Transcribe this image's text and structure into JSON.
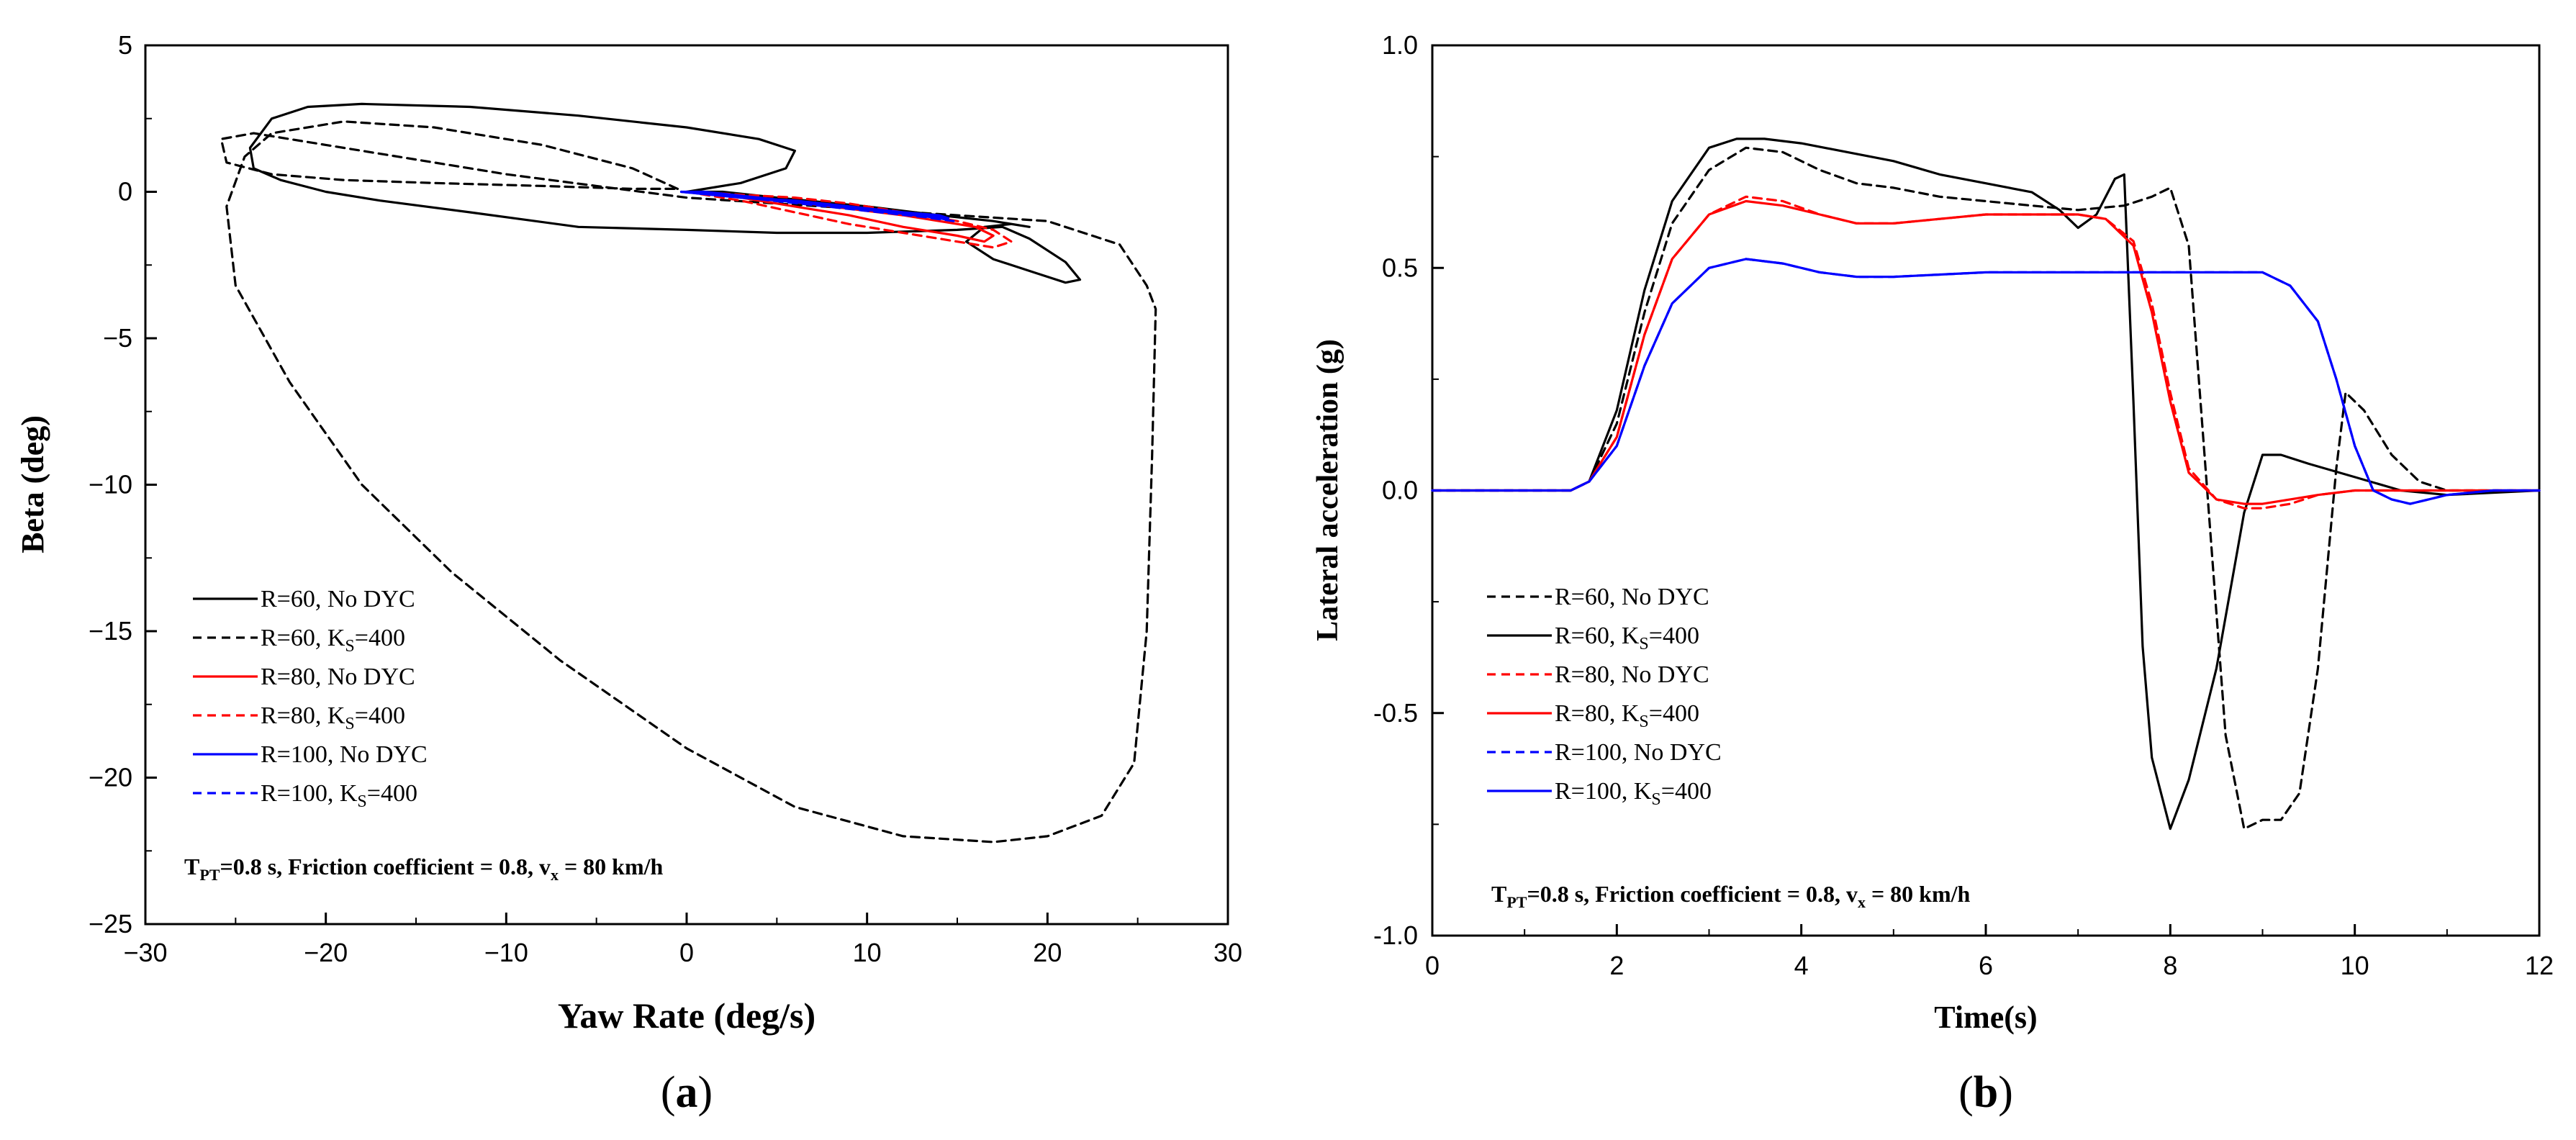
{
  "chart_data": [
    {
      "id": "a",
      "type": "line",
      "panel_label": {
        "open": "(",
        "letter": "a",
        "close": ")"
      },
      "xlabel": "Yaw Rate (deg/s)",
      "ylabel": "Beta (deg)",
      "xlim": [
        -30,
        30
      ],
      "ylim": [
        -25,
        5
      ],
      "xticks": [
        -30,
        -20,
        -10,
        0,
        10,
        20,
        30
      ],
      "yticks": [
        5,
        0,
        -5,
        -10,
        -15,
        -20,
        -25
      ],
      "xtick_labels": [
        "−30",
        "−20",
        "−10",
        "0",
        "10",
        "20",
        "30"
      ],
      "ytick_labels": [
        "5",
        "0",
        "−5",
        "−10",
        "−15",
        "−20",
        "−25"
      ],
      "legend": [
        {
          "series": 0,
          "text": "R=60, No DYC"
        },
        {
          "series": 1,
          "text": "R=60, K",
          "sub": "S",
          "suffix": "=400"
        },
        {
          "series": 2,
          "text": "R=80, No DYC"
        },
        {
          "series": 3,
          "text": "R=80, K",
          "sub": "S",
          "suffix": "=400"
        },
        {
          "series": 4,
          "text": "R=100, No DYC"
        },
        {
          "series": 5,
          "text": "R=100, K",
          "sub": "S",
          "suffix": "=400"
        }
      ],
      "annotation": {
        "t": "T",
        "t_sub": "PT",
        "mid": "=0.8 s,  Friction coefficient = 0.8,  v",
        "v_sub": "x",
        "end": " = 80 km/h"
      },
      "series": [
        {
          "name": "R=60, No DYC",
          "color": "#000000",
          "dash": "solid",
          "x": [
            0,
            3,
            5.5,
            6,
            4,
            0,
            -6,
            -12,
            -18,
            -21,
            -23,
            -24.2,
            -24,
            -22.5,
            -20,
            -17,
            -12,
            -6,
            0,
            5,
            10,
            15,
            17.5,
            19,
            21,
            21.8,
            21,
            19.5,
            17,
            15.5,
            16.5,
            18,
            19,
            17,
            14,
            10,
            5,
            2,
            0
          ],
          "y": [
            0,
            0.3,
            0.8,
            1.4,
            1.8,
            2.2,
            2.6,
            2.9,
            3.0,
            2.9,
            2.5,
            1.5,
            0.8,
            0.4,
            0.0,
            -0.3,
            -0.7,
            -1.2,
            -1.3,
            -1.4,
            -1.4,
            -1.3,
            -1.2,
            -1.6,
            -2.4,
            -3.0,
            -3.1,
            -2.8,
            -2.3,
            -1.7,
            -1.2,
            -1.1,
            -1.2,
            -1.0,
            -0.8,
            -0.5,
            -0.2,
            0.0,
            0
          ]
        },
        {
          "name": "R=60, Ks=400",
          "color": "#000000",
          "dash": "dashed",
          "x": [
            -0.5,
            -3,
            -8,
            -14,
            -19,
            -23,
            -24.5,
            -25.5,
            -25,
            -22,
            -18,
            -13,
            -7,
            0,
            6,
            12,
            17,
            20,
            23,
            24.8,
            25.5,
            25.8,
            26,
            25.5,
            24,
            20,
            15,
            10,
            5,
            0,
            -5,
            -10,
            -15,
            -20,
            -24,
            -25.8,
            -25.5,
            -23,
            -19,
            -14,
            -8,
            -3,
            -0.5
          ],
          "y": [
            0.1,
            0.8,
            1.6,
            2.2,
            2.4,
            2.0,
            1.2,
            -0.5,
            -3.2,
            -6.5,
            -10,
            -13,
            -16,
            -19,
            -21,
            -22,
            -22.2,
            -22,
            -21.3,
            -19.5,
            -15,
            -9,
            -4,
            -3.2,
            -1.8,
            -1.0,
            -0.8,
            -0.6,
            -0.4,
            -0.2,
            0.2,
            0.6,
            1.1,
            1.6,
            2.0,
            1.8,
            1.0,
            0.6,
            0.4,
            0.3,
            0.2,
            0.1,
            0.1
          ]
        },
        {
          "name": "R=80, No DYC",
          "color": "#ff0000",
          "dash": "solid",
          "x": [
            0,
            4,
            8,
            12,
            14,
            16,
            17,
            16.5,
            15,
            12,
            9,
            6,
            3,
            0.5
          ],
          "y": [
            0,
            -0.2,
            -0.5,
            -0.8,
            -1.0,
            -1.2,
            -1.5,
            -1.7,
            -1.5,
            -1.2,
            -0.8,
            -0.5,
            -0.2,
            0
          ]
        },
        {
          "name": "R=80, Ks=400",
          "color": "#ff0000",
          "dash": "dashed",
          "x": [
            0,
            3,
            6,
            9,
            12,
            15,
            17,
            18,
            17,
            15,
            12,
            9,
            6,
            3,
            0.5
          ],
          "y": [
            0,
            -0.3,
            -0.7,
            -1.1,
            -1.4,
            -1.7,
            -1.9,
            -1.7,
            -1.3,
            -1.0,
            -0.7,
            -0.4,
            -0.2,
            -0.1,
            0
          ]
        },
        {
          "name": "R=100, No DYC",
          "color": "#0000ff",
          "dash": "solid",
          "x": [
            -0.3,
            3,
            6,
            9,
            12,
            14,
            14.5,
            13,
            10,
            7,
            4,
            1,
            -0.3
          ],
          "y": [
            0,
            -0.2,
            -0.3,
            -0.5,
            -0.7,
            -0.8,
            -0.9,
            -0.8,
            -0.6,
            -0.4,
            -0.2,
            0.0,
            0
          ]
        },
        {
          "name": "R=100, Ks=400",
          "color": "#0000ff",
          "dash": "dashed",
          "x": [
            -0.3,
            3,
            6,
            9,
            12,
            14,
            14.8,
            13,
            10,
            7,
            4,
            1,
            -0.3
          ],
          "y": [
            0,
            -0.2,
            -0.35,
            -0.55,
            -0.75,
            -0.9,
            -1.0,
            -0.85,
            -0.65,
            -0.45,
            -0.25,
            -0.05,
            0
          ]
        }
      ]
    },
    {
      "id": "b",
      "type": "line",
      "panel_label": {
        "open": "(",
        "letter": "b",
        "close": ")"
      },
      "xlabel": "Time(s)",
      "ylabel": "Lateral acceleration (g)",
      "xlim": [
        0,
        12
      ],
      "ylim": [
        -1.0,
        1.0
      ],
      "xticks": [
        0,
        2,
        4,
        6,
        8,
        10,
        12
      ],
      "yticks": [
        1.0,
        0.5,
        0.0,
        -0.5,
        -1.0
      ],
      "xtick_labels": [
        "0",
        "2",
        "4",
        "6",
        "8",
        "10",
        "12"
      ],
      "ytick_labels": [
        "1.0",
        "0.5",
        "0.0",
        "-0.5",
        "-1.0"
      ],
      "legend": [
        {
          "series": 0,
          "text": "R=60, No DYC"
        },
        {
          "series": 1,
          "text": "R=60, K",
          "sub": "S",
          "suffix": "=400"
        },
        {
          "series": 2,
          "text": "R=80, No DYC"
        },
        {
          "series": 3,
          "text": "R=80, K",
          "sub": "S",
          "suffix": "=400"
        },
        {
          "series": 4,
          "text": "R=100, No DYC"
        },
        {
          "series": 5,
          "text": "R=100, K",
          "sub": "S",
          "suffix": "=400"
        }
      ],
      "annotation": {
        "t": "T",
        "t_sub": "PT",
        "mid": "=0.8 s,  Friction coefficient = 0.8, v",
        "v_sub": "x",
        "end": " = 80 km/h"
      },
      "series": [
        {
          "name": "R=60, No DYC",
          "color": "#000000",
          "dash": "dashed",
          "x": [
            0,
            1.5,
            1.7,
            2.0,
            2.3,
            2.6,
            3.0,
            3.4,
            3.8,
            4.2,
            4.6,
            5.0,
            5.5,
            6.0,
            6.5,
            7.0,
            7.5,
            7.8,
            8.0,
            8.2,
            8.4,
            8.6,
            8.8,
            9.0,
            9.2,
            9.4,
            9.6,
            9.8,
            9.9,
            10.1,
            10.4,
            10.7,
            11.0,
            11.5,
            12
          ],
          "y": [
            0,
            0,
            0.02,
            0.15,
            0.4,
            0.6,
            0.72,
            0.77,
            0.76,
            0.72,
            0.69,
            0.68,
            0.66,
            0.65,
            0.64,
            0.63,
            0.64,
            0.66,
            0.68,
            0.55,
            0.0,
            -0.55,
            -0.76,
            -0.74,
            -0.74,
            -0.68,
            -0.4,
            0.05,
            0.22,
            0.18,
            0.08,
            0.02,
            0,
            0,
            0
          ]
        },
        {
          "name": "R=60, Ks=400",
          "color": "#000000",
          "dash": "solid",
          "x": [
            0,
            1.5,
            1.7,
            2.0,
            2.3,
            2.6,
            3.0,
            3.3,
            3.6,
            4.0,
            4.5,
            5.0,
            5.5,
            6.0,
            6.5,
            6.8,
            7.0,
            7.2,
            7.4,
            7.5,
            7.6,
            7.7,
            7.8,
            8.0,
            8.2,
            8.5,
            8.8,
            9.0,
            9.2,
            9.5,
            10.0,
            10.5,
            11.0,
            12
          ],
          "y": [
            0,
            0,
            0.02,
            0.18,
            0.45,
            0.65,
            0.77,
            0.79,
            0.79,
            0.78,
            0.76,
            0.74,
            0.71,
            0.69,
            0.67,
            0.63,
            0.59,
            0.62,
            0.7,
            0.71,
            0.2,
            -0.35,
            -0.6,
            -0.76,
            -0.65,
            -0.4,
            -0.05,
            0.08,
            0.08,
            0.06,
            0.03,
            0.0,
            -0.01,
            0
          ]
        },
        {
          "name": "R=80, No DYC",
          "color": "#ff0000",
          "dash": "dashed",
          "x": [
            0,
            1.5,
            1.7,
            2.0,
            2.3,
            2.6,
            3.0,
            3.4,
            3.8,
            4.2,
            4.6,
            5.0,
            5.5,
            6.0,
            6.5,
            7.0,
            7.3,
            7.6,
            7.8,
            8.0,
            8.2,
            8.5,
            8.8,
            9.0,
            9.3,
            9.6,
            10.0,
            10.5,
            11.0,
            12
          ],
          "y": [
            0,
            0,
            0.02,
            0.12,
            0.35,
            0.52,
            0.62,
            0.66,
            0.65,
            0.62,
            0.6,
            0.6,
            0.61,
            0.62,
            0.62,
            0.62,
            0.61,
            0.56,
            0.42,
            0.22,
            0.05,
            -0.02,
            -0.04,
            -0.04,
            -0.03,
            -0.01,
            0,
            0,
            0,
            0
          ]
        },
        {
          "name": "R=80, Ks=400",
          "color": "#ff0000",
          "dash": "solid",
          "x": [
            0,
            1.5,
            1.7,
            2.0,
            2.3,
            2.6,
            3.0,
            3.4,
            3.8,
            4.2,
            4.6,
            5.0,
            5.5,
            6.0,
            6.5,
            7.0,
            7.3,
            7.6,
            7.8,
            8.0,
            8.2,
            8.5,
            8.8,
            9.0,
            9.3,
            9.6,
            10.0,
            10.5,
            11.0,
            12
          ],
          "y": [
            0,
            0,
            0.02,
            0.12,
            0.35,
            0.52,
            0.62,
            0.65,
            0.64,
            0.62,
            0.6,
            0.6,
            0.61,
            0.62,
            0.62,
            0.62,
            0.61,
            0.55,
            0.4,
            0.2,
            0.04,
            -0.02,
            -0.03,
            -0.03,
            -0.02,
            -0.01,
            0,
            0,
            0,
            0
          ]
        },
        {
          "name": "R=100, No DYC",
          "color": "#0000ff",
          "dash": "dashed",
          "x": [
            0,
            1.5,
            1.7,
            2.0,
            2.3,
            2.6,
            3.0,
            3.4,
            3.8,
            4.2,
            4.6,
            5.0,
            6.0,
            7.0,
            8.0,
            8.5,
            9.0,
            9.3,
            9.6,
            9.8,
            10.0,
            10.2,
            10.4,
            10.6,
            10.8,
            11.0,
            11.5,
            12
          ],
          "y": [
            0,
            0,
            0.02,
            0.1,
            0.28,
            0.42,
            0.5,
            0.52,
            0.51,
            0.49,
            0.48,
            0.48,
            0.49,
            0.49,
            0.49,
            0.49,
            0.49,
            0.46,
            0.38,
            0.25,
            0.1,
            0.0,
            -0.02,
            -0.03,
            -0.02,
            -0.01,
            0,
            0
          ]
        },
        {
          "name": "R=100, Ks=400",
          "color": "#0000ff",
          "dash": "solid",
          "x": [
            0,
            1.5,
            1.7,
            2.0,
            2.3,
            2.6,
            3.0,
            3.4,
            3.8,
            4.2,
            4.6,
            5.0,
            6.0,
            7.0,
            8.0,
            8.5,
            9.0,
            9.3,
            9.6,
            9.8,
            10.0,
            10.2,
            10.4,
            10.6,
            10.8,
            11.0,
            11.5,
            12
          ],
          "y": [
            0,
            0,
            0.02,
            0.1,
            0.28,
            0.42,
            0.5,
            0.52,
            0.51,
            0.49,
            0.48,
            0.48,
            0.49,
            0.49,
            0.49,
            0.49,
            0.49,
            0.46,
            0.38,
            0.25,
            0.1,
            0.0,
            -0.02,
            -0.03,
            -0.02,
            -0.01,
            0,
            0
          ]
        }
      ]
    }
  ]
}
